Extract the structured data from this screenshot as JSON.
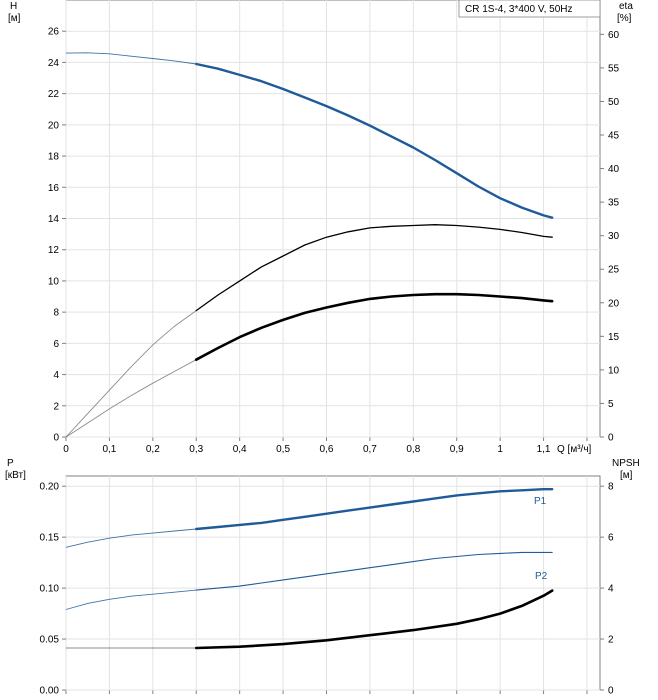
{
  "chart_data": [
    {
      "type": "line",
      "title": "CR 1S-4, 3*400 V, 50Hz",
      "xlabel": "Q [м³/ч]",
      "x_ticks": [
        "0",
        "0,1",
        "0,2",
        "0,3",
        "0,4",
        "0,5",
        "0,6",
        "0,7",
        "0,8",
        "0,9",
        "1",
        "1,1"
      ],
      "xlim": [
        0,
        1.23
      ],
      "left_axis": {
        "label_line1": "H",
        "label_line2": "[м]",
        "ylim": [
          0,
          28
        ],
        "ticks": [
          "0",
          "2",
          "4",
          "6",
          "8",
          "10",
          "12",
          "14",
          "16",
          "18",
          "20",
          "22",
          "24",
          "26"
        ]
      },
      "right_axis": {
        "label_line1": "eta",
        "label_line2": "[%]",
        "ylim": [
          0,
          65.12
        ],
        "ticks": [
          "0",
          "5",
          "10",
          "15",
          "20",
          "25",
          "30",
          "35",
          "40",
          "45",
          "50",
          "55",
          "60"
        ]
      },
      "grid": true,
      "series": [
        {
          "axis": "left",
          "color": "#1f5b99",
          "x": [
            0,
            0.05,
            0.1,
            0.15,
            0.2,
            0.25,
            0.3,
            0.35,
            0.4,
            0.45,
            0.5,
            0.55,
            0.6,
            0.65,
            0.7,
            0.75,
            0.8,
            0.85,
            0.9,
            0.95,
            1.0,
            1.05,
            1.1,
            1.12
          ],
          "y": [
            24.6,
            24.62,
            24.55,
            24.4,
            24.25,
            24.1,
            23.9,
            23.6,
            23.2,
            22.8,
            22.3,
            21.75,
            21.2,
            20.6,
            19.95,
            19.25,
            18.55,
            17.75,
            16.9,
            16.05,
            15.3,
            14.7,
            14.2,
            14.05
          ],
          "solid_from": 0.3
        },
        {
          "axis": "left",
          "color": "#000000",
          "x": [
            0,
            0.05,
            0.1,
            0.15,
            0.2,
            0.25,
            0.3,
            0.35,
            0.4,
            0.45,
            0.5,
            0.55,
            0.6,
            0.65,
            0.7,
            0.75,
            0.8,
            0.85,
            0.9,
            0.95,
            1.0,
            1.05,
            1.1,
            1.12
          ],
          "y": [
            0,
            1.5,
            3.0,
            4.5,
            5.9,
            7.1,
            8.1,
            9.1,
            10.0,
            10.9,
            11.6,
            12.3,
            12.8,
            13.15,
            13.4,
            13.5,
            13.55,
            13.6,
            13.55,
            13.45,
            13.3,
            13.1,
            12.85,
            12.8
          ],
          "solid_from": 0.3
        },
        {
          "axis": "left",
          "color": "#000000",
          "bold": true,
          "x": [
            0,
            0.05,
            0.1,
            0.15,
            0.2,
            0.25,
            0.3,
            0.35,
            0.4,
            0.45,
            0.5,
            0.55,
            0.6,
            0.65,
            0.7,
            0.75,
            0.8,
            0.85,
            0.9,
            0.95,
            1.0,
            1.05,
            1.1,
            1.12
          ],
          "y": [
            0,
            0.9,
            1.8,
            2.65,
            3.45,
            4.2,
            4.95,
            5.7,
            6.4,
            7.0,
            7.5,
            7.95,
            8.3,
            8.6,
            8.85,
            9.0,
            9.1,
            9.15,
            9.15,
            9.1,
            9.0,
            8.9,
            8.75,
            8.7
          ],
          "solid_from": 0.3
        }
      ]
    },
    {
      "type": "line",
      "xlim": [
        0,
        1.23
      ],
      "left_axis": {
        "label_line1": "P",
        "label_line2": "[кВт]",
        "ylim": [
          0,
          0.21
        ],
        "ticks": [
          "0.00",
          "0.05",
          "0.10",
          "0.15",
          "0.20"
        ]
      },
      "right_axis": {
        "label_line1": "NPSH",
        "label_line2": "[м]",
        "ylim": [
          0,
          8.4
        ],
        "ticks": [
          "0",
          "2",
          "4",
          "6",
          "8"
        ]
      },
      "grid": true,
      "series": [
        {
          "name": "P1",
          "axis": "left",
          "color": "#1f5b99",
          "x": [
            0,
            0.05,
            0.1,
            0.15,
            0.2,
            0.25,
            0.3,
            0.35,
            0.4,
            0.45,
            0.5,
            0.55,
            0.6,
            0.65,
            0.7,
            0.75,
            0.8,
            0.85,
            0.9,
            0.95,
            1.0,
            1.05,
            1.1,
            1.12
          ],
          "y": [
            0.14,
            0.145,
            0.149,
            0.152,
            0.154,
            0.156,
            0.158,
            0.16,
            0.162,
            0.164,
            0.167,
            0.17,
            0.173,
            0.176,
            0.179,
            0.182,
            0.185,
            0.188,
            0.191,
            0.193,
            0.195,
            0.196,
            0.197,
            0.197
          ],
          "solid_from": 0.3
        },
        {
          "name": "P2",
          "axis": "left",
          "color": "#1f5b99",
          "thin": true,
          "x": [
            0,
            0.05,
            0.1,
            0.15,
            0.2,
            0.25,
            0.3,
            0.35,
            0.4,
            0.45,
            0.5,
            0.55,
            0.6,
            0.65,
            0.7,
            0.75,
            0.8,
            0.85,
            0.9,
            0.95,
            1.0,
            1.05,
            1.1,
            1.12
          ],
          "y": [
            0.079,
            0.085,
            0.089,
            0.092,
            0.094,
            0.096,
            0.098,
            0.1,
            0.102,
            0.105,
            0.108,
            0.111,
            0.114,
            0.117,
            0.12,
            0.123,
            0.126,
            0.129,
            0.131,
            0.133,
            0.134,
            0.135,
            0.135,
            0.135
          ],
          "solid_from": 0.3
        },
        {
          "axis": "right",
          "color": "#000000",
          "bold": true,
          "x": [
            0,
            0.1,
            0.2,
            0.3,
            0.4,
            0.5,
            0.6,
            0.7,
            0.8,
            0.9,
            0.95,
            1.0,
            1.05,
            1.1,
            1.12
          ],
          "y": [
            1.65,
            1.65,
            1.65,
            1.65,
            1.7,
            1.8,
            1.95,
            2.15,
            2.35,
            2.6,
            2.78,
            3.0,
            3.3,
            3.7,
            3.9
          ],
          "solid_from": 0.3
        }
      ]
    }
  ]
}
